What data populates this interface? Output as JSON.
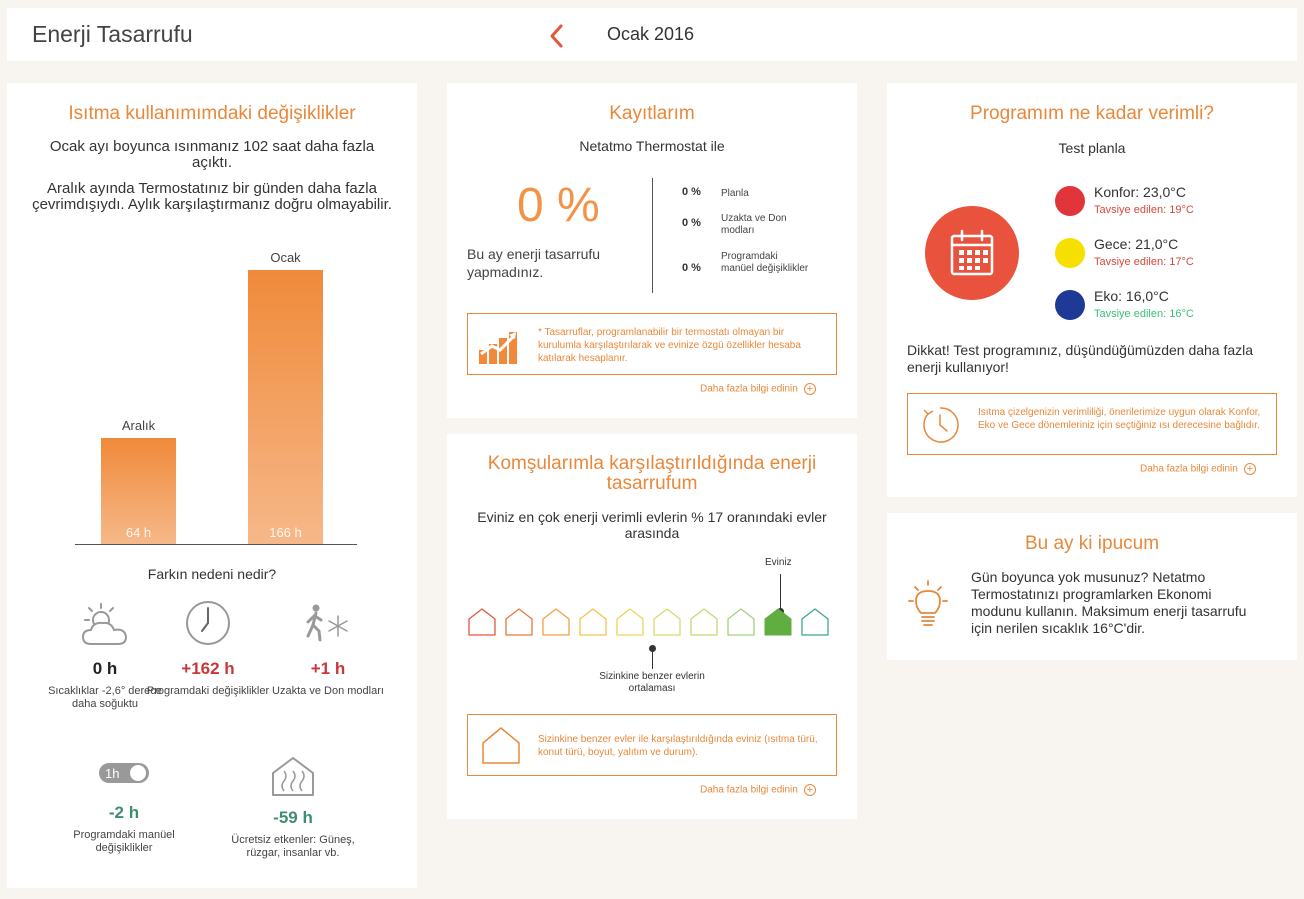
{
  "header": {
    "title": "Enerji Tasarrufu",
    "month": "Ocak 2016"
  },
  "heating": {
    "title": "Isıtma kullanımımdaki değişiklikler",
    "text1": "Ocak ayı boyunca ısınmanız 102 saat daha fazla açıktı.",
    "text2": "Aralık ayında Termostatınız bir günden daha fazla çevrimdışıydı. Aylık karşılaştırmanız doğru olmayabilir.",
    "chart_data": {
      "type": "bar",
      "categories": [
        "Aralık",
        "Ocak"
      ],
      "values": [
        64,
        166
      ],
      "value_labels": [
        "64 h",
        "166 h"
      ],
      "colors": [
        "#f08a3a",
        "#f6b889"
      ]
    },
    "reason_title": "Farkın nedeni nedir?",
    "factors": [
      {
        "value": "0 h",
        "label": "Sıcaklıklar -2,6° derece daha soğuktu",
        "color": "#222222",
        "icon": "weather-cloud-sun-icon"
      },
      {
        "value": "+162 h",
        "label": "Programdaki değişiklikler",
        "color": "#c9373b",
        "icon": "clock-icon"
      },
      {
        "value": "+1 h",
        "label": "Uzakta ve Don modları",
        "color": "#c9373b",
        "icon": "away-frost-icon"
      },
      {
        "value": "-2 h",
        "label": "Programdaki manüel değişiklikler",
        "color": "#3f8f6e",
        "icon": "manual-boost-toggle-icon",
        "toggle_text": "1h"
      },
      {
        "value": "-59 h",
        "label": "Ücretsiz etkenler: Güneş, rüzgar, insanlar vb.",
        "color": "#3f8f6e",
        "icon": "house-heat-icon"
      }
    ]
  },
  "records": {
    "title": "Kayıtlarım",
    "subtitle": "Netatmo Thermostat ile",
    "percent": "0 %",
    "note": "Bu ay enerji tasarrufu yapmadınız.",
    "rows": [
      {
        "value": "0 %",
        "label": "Planla"
      },
      {
        "value": "0 %",
        "label": "Uzakta ve Don modları"
      },
      {
        "value": "0 %",
        "label": "Programdaki manüel değişiklikler"
      }
    ],
    "info": "* Tasarruflar, programlanabilir bir termostatı olmayan bir kurulumla karşılaştırılarak ve evinize özgü özellikler hesaba katılarak hesaplanır.",
    "more": "Daha fazla bilgi edinin"
  },
  "neighbors": {
    "title": "Komşularımla karşılaştırıldığında enerji tasarrufum",
    "text": "Eviniz en çok enerji verimli evlerin % 17 oranındaki evler arasında",
    "your_home_label": "Eviniz",
    "average_label": "Sizinkine benzer evlerin ortalaması",
    "house_colors": [
      "#e2583c",
      "#e8773e",
      "#f0a047",
      "#f3c34e",
      "#e9d65a",
      "#d7dc69",
      "#c3d877",
      "#a8cf80",
      "#5fae3f",
      "#3fa58f"
    ],
    "highlighted_index": 8,
    "average_index": 4,
    "info": "Sizinkine benzer evler ile karşılaştırıldığında eviniz (ısıtma türü, konut türü, boyut, yalıtım ve durum).",
    "more": "Daha fazla bilgi edinin"
  },
  "program": {
    "title": "Programım ne kadar verimli?",
    "plan": "Test planla",
    "modes": [
      {
        "name": "Konfor: 23,0°C",
        "rec": "Tavsiye edilen: 19°C",
        "color": "#e0353b",
        "rec_color": "#d24b3c"
      },
      {
        "name": "Gece: 21,0°C",
        "rec": "Tavsiye edilen: 17°C",
        "color": "#f6e000",
        "rec_color": "#d24b3c"
      },
      {
        "name": "Eko: 16,0°C",
        "rec": "Tavsiye edilen: 16°C",
        "color": "#1e3a96",
        "rec_color": "#3bbf7a"
      }
    ],
    "warning": "Dikkat! Test programınız, düşündüğümüzden daha fazla enerji kullanıyor!",
    "info": "Isıtma çizelgenizin verimliliği, önerilerimize uygun olarak Konfor, Eko ve Gece dönemleriniz için seçtiğiniz ısı derecesine bağlıdır.",
    "more": "Daha fazla bilgi edinin"
  },
  "tip": {
    "title": "Bu ay ki ipucum",
    "text": "Gün boyunca yok musunuz? Netatmo Termostatınızı programlarken Ekonomi modunu kullanın. Maksimum enerji tasarrufu için nerilen sıcaklık 16°C'dir."
  }
}
